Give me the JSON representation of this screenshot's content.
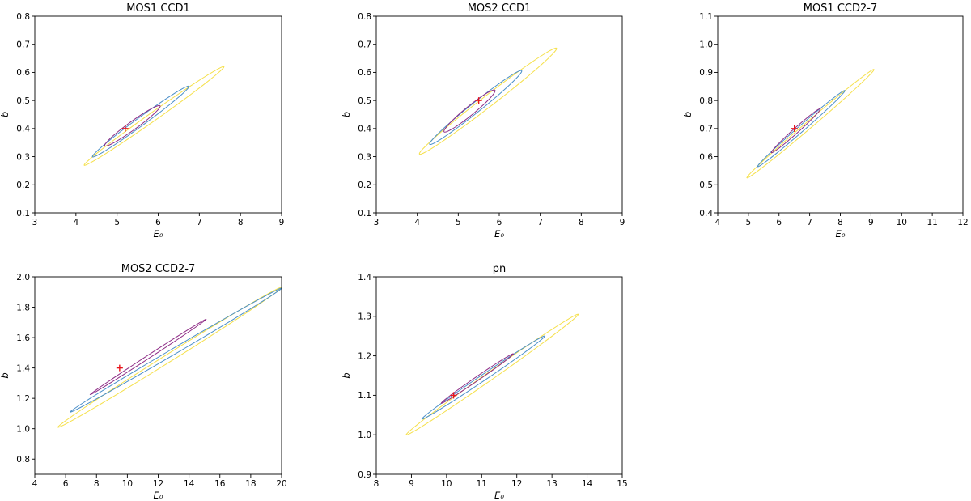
{
  "figure": {
    "colors": {
      "contour_outer": "#f5e04b",
      "contour_middle": "#4a8fc9",
      "contour_inner": "#8e2c86",
      "best_fit_marker": "#e8141a",
      "axes": "#000000"
    }
  },
  "chart_data": [
    {
      "type": "contour",
      "title": "MOS1 CCD1",
      "xlabel": "E₀",
      "ylabel": "b",
      "xlim": [
        3,
        9
      ],
      "ylim": [
        0.1,
        0.8
      ],
      "xticks": [
        "3",
        "4",
        "5",
        "6",
        "7",
        "8",
        "9"
      ],
      "yticks": [
        "0.1",
        "0.2",
        "0.3",
        "0.4",
        "0.5",
        "0.6",
        "0.7",
        "0.8"
      ],
      "best_fit": {
        "x": 5.2,
        "y": 0.4
      },
      "contours": [
        {
          "level": "outer",
          "color": "#f5e04b",
          "end1": {
            "x": 4.2,
            "y": 0.27
          },
          "end2": {
            "x": 7.6,
            "y": 0.62
          },
          "halfwidth": 0.018
        },
        {
          "level": "middle",
          "color": "#4a8fc9",
          "end1": {
            "x": 4.4,
            "y": 0.3
          },
          "end2": {
            "x": 6.75,
            "y": 0.55
          },
          "halfwidth": 0.018
        },
        {
          "level": "inner",
          "color": "#8e2c86",
          "end1": {
            "x": 4.7,
            "y": 0.34
          },
          "end2": {
            "x": 6.05,
            "y": 0.48
          },
          "halfwidth": 0.018
        }
      ]
    },
    {
      "type": "contour",
      "title": "MOS2 CCD1",
      "xlabel": "E₀",
      "ylabel": "b",
      "xlim": [
        3,
        9
      ],
      "ylim": [
        0.1,
        0.8
      ],
      "xticks": [
        "3",
        "4",
        "5",
        "6",
        "7",
        "8",
        "9"
      ],
      "yticks": [
        "0.1",
        "0.2",
        "0.3",
        "0.4",
        "0.5",
        "0.6",
        "0.7",
        "0.8"
      ],
      "best_fit": {
        "x": 5.5,
        "y": 0.5
      },
      "contours": [
        {
          "level": "outer",
          "color": "#f5e04b",
          "end1": {
            "x": 4.05,
            "y": 0.31
          },
          "end2": {
            "x": 7.4,
            "y": 0.685
          },
          "halfwidth": 0.025
        },
        {
          "level": "middle",
          "color": "#4a8fc9",
          "end1": {
            "x": 4.3,
            "y": 0.345
          },
          "end2": {
            "x": 6.55,
            "y": 0.605
          },
          "halfwidth": 0.022
        },
        {
          "level": "inner",
          "color": "#8e2c86",
          "end1": {
            "x": 4.65,
            "y": 0.39
          },
          "end2": {
            "x": 5.9,
            "y": 0.535
          },
          "halfwidth": 0.02
        }
      ]
    },
    {
      "type": "contour",
      "title": "MOS1 CCD2-7",
      "xlabel": "E₀",
      "ylabel": "b",
      "xlim": [
        4,
        12
      ],
      "ylim": [
        0.4,
        1.1
      ],
      "xticks": [
        "4",
        "5",
        "6",
        "7",
        "8",
        "9",
        "10",
        "11",
        "12"
      ],
      "yticks": [
        "0.4",
        "0.5",
        "0.6",
        "0.7",
        "0.8",
        "0.9",
        "1.0",
        "1.1"
      ],
      "best_fit": {
        "x": 6.5,
        "y": 0.7
      },
      "contours": [
        {
          "level": "outer",
          "color": "#f5e04b",
          "end1": {
            "x": 4.95,
            "y": 0.525
          },
          "end2": {
            "x": 9.1,
            "y": 0.91
          },
          "halfwidth": 0.016
        },
        {
          "level": "middle",
          "color": "#4a8fc9",
          "end1": {
            "x": 5.3,
            "y": 0.565
          },
          "end2": {
            "x": 8.15,
            "y": 0.835
          },
          "halfwidth": 0.014
        },
        {
          "level": "inner",
          "color": "#8e2c86",
          "end1": {
            "x": 5.75,
            "y": 0.615
          },
          "end2": {
            "x": 7.35,
            "y": 0.77
          },
          "halfwidth": 0.012
        }
      ]
    },
    {
      "type": "contour",
      "title": "MOS2 CCD2-7",
      "xlabel": "E₀",
      "ylabel": "b",
      "xlim": [
        4,
        20
      ],
      "ylim": [
        0.7,
        2.0
      ],
      "xticks": [
        "4",
        "6",
        "8",
        "10",
        "12",
        "14",
        "16",
        "18",
        "20"
      ],
      "yticks": [
        "0.8",
        "1.0",
        "1.2",
        "1.4",
        "1.6",
        "1.8",
        "2.0"
      ],
      "best_fit": {
        "x": 9.5,
        "y": 1.4
      },
      "contours": [
        {
          "level": "outer",
          "color": "#f5e04b",
          "end1": {
            "x": 5.5,
            "y": 1.01
          },
          "end2": {
            "x": 20,
            "y": 1.93
          },
          "halfwidth": 0.03
        },
        {
          "level": "middle",
          "color": "#4a8fc9",
          "end1": {
            "x": 6.3,
            "y": 1.11
          },
          "end2": {
            "x": 20,
            "y": 1.925
          },
          "halfwidth": 0.022
        },
        {
          "level": "inner",
          "color": "#8e2c86",
          "end1": {
            "x": 7.6,
            "y": 1.225
          },
          "end2": {
            "x": 15.1,
            "y": 1.72
          },
          "halfwidth": 0.012
        }
      ]
    },
    {
      "type": "contour",
      "title": "pn",
      "xlabel": "E₀",
      "ylabel": "b",
      "xlim": [
        8,
        15
      ],
      "ylim": [
        0.9,
        1.4
      ],
      "xticks": [
        "8",
        "9",
        "10",
        "11",
        "12",
        "13",
        "14",
        "15"
      ],
      "yticks": [
        "0.9",
        "1.0",
        "1.1",
        "1.2",
        "1.3",
        "1.4"
      ],
      "best_fit": {
        "x": 10.2,
        "y": 1.1
      },
      "contours": [
        {
          "level": "outer",
          "color": "#f5e04b",
          "end1": {
            "x": 8.85,
            "y": 1.0
          },
          "end2": {
            "x": 13.75,
            "y": 1.305
          },
          "halfwidth": 0.012
        },
        {
          "level": "middle",
          "color": "#4a8fc9",
          "end1": {
            "x": 9.3,
            "y": 1.04
          },
          "end2": {
            "x": 12.8,
            "y": 1.25
          },
          "halfwidth": 0.009
        },
        {
          "level": "inner",
          "color": "#8e2c86",
          "end1": {
            "x": 9.85,
            "y": 1.08
          },
          "end2": {
            "x": 11.9,
            "y": 1.205
          },
          "halfwidth": 0.006
        }
      ]
    }
  ]
}
